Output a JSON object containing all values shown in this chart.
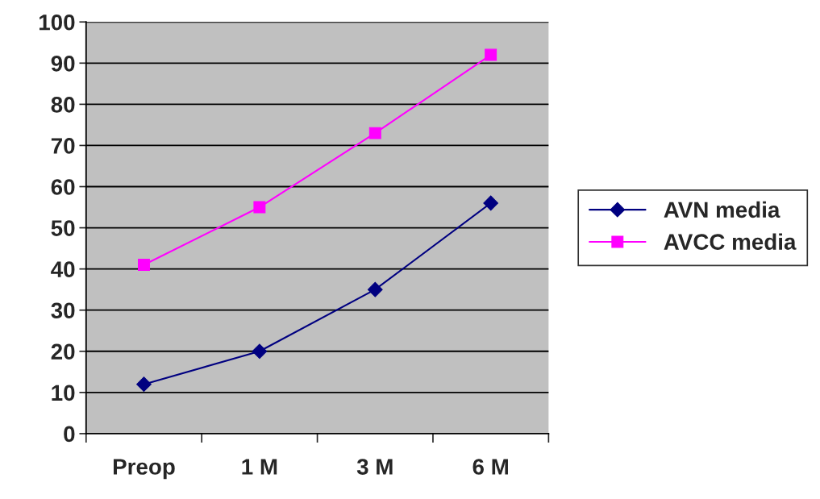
{
  "chart_data": {
    "type": "line",
    "categories": [
      "Preop",
      "1 M",
      "3 M",
      "6 M"
    ],
    "series": [
      {
        "name": "AVN media",
        "color": "#000080",
        "values": [
          12,
          20,
          35,
          56
        ],
        "marker": "diamond"
      },
      {
        "name": "AVCC media",
        "color": "#ff00ff",
        "values": [
          41,
          55,
          73,
          92
        ],
        "marker": "square"
      }
    ],
    "ylim": [
      0,
      100
    ],
    "yticks": [
      0,
      10,
      20,
      30,
      40,
      50,
      60,
      70,
      80,
      90,
      100
    ],
    "grid": "y",
    "legend": "right"
  }
}
